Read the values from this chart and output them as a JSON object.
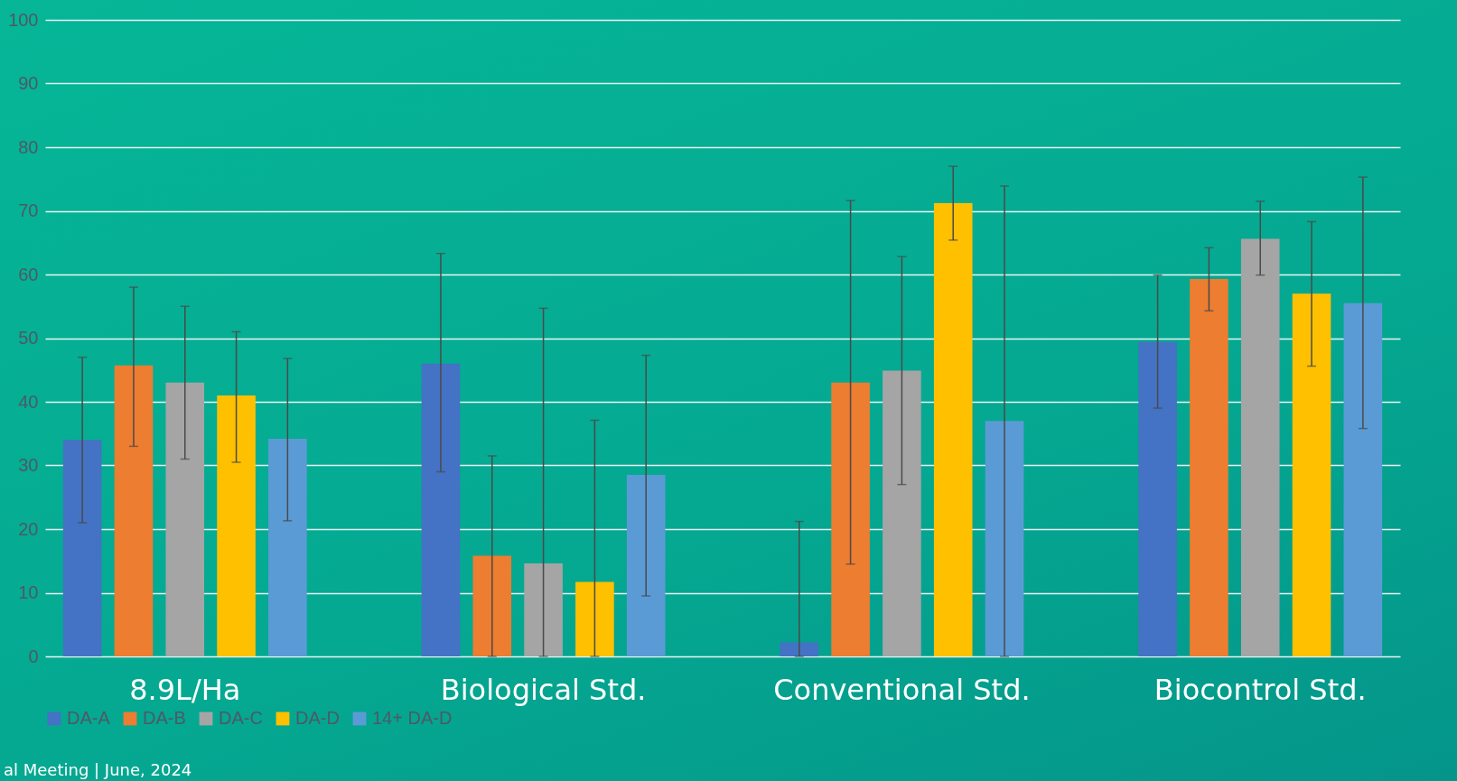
{
  "chart_data": {
    "type": "bar",
    "categories": [
      "8.9L/Ha",
      "Biological Std.",
      "Conventional Std.",
      "Biocontrol Std."
    ],
    "series": [
      {
        "name": "DA-A",
        "color": "#4472c4",
        "values": [
          34,
          46,
          2.2,
          49.4
        ],
        "errors": [
          [
            21,
            47
          ],
          [
            29,
            63.3
          ],
          [
            0,
            21.2
          ],
          [
            39,
            59.9
          ]
        ]
      },
      {
        "name": "DA-B",
        "color": "#ed7d31",
        "values": [
          45.7,
          15.8,
          43,
          59.3
        ],
        "errors": [
          [
            33,
            58
          ],
          [
            0,
            31.5
          ],
          [
            14.5,
            71.6
          ],
          [
            54.3,
            64.2
          ]
        ]
      },
      {
        "name": "DA-C",
        "color": "#a5a5a5",
        "values": [
          43,
          14.6,
          44.9,
          65.6
        ],
        "errors": [
          [
            31,
            55
          ],
          [
            0,
            54.7
          ],
          [
            27,
            62.8
          ],
          [
            59.9,
            71.5
          ]
        ]
      },
      {
        "name": "DA-D",
        "color": "#ffc000",
        "values": [
          41,
          11.7,
          71.2,
          57
        ],
        "errors": [
          [
            30.5,
            51
          ],
          [
            0,
            37.1
          ],
          [
            65.4,
            77
          ],
          [
            45.6,
            68.3
          ]
        ]
      },
      {
        "name": "14+ DA-D",
        "color": "#5b9bd5",
        "values": [
          34.2,
          28.5,
          37,
          55.5
        ],
        "errors": [
          [
            21.3,
            46.8
          ],
          [
            9.5,
            47.3
          ],
          [
            0,
            73.9
          ],
          [
            35.8,
            75.3
          ]
        ]
      }
    ],
    "ylim": [
      0,
      100
    ],
    "yticks": [
      0,
      10,
      20,
      30,
      40,
      50,
      60,
      70,
      80,
      90,
      100
    ],
    "grid": "y",
    "legend": "bottom",
    "annotations": [
      "al Meeting | June, 2024"
    ]
  }
}
